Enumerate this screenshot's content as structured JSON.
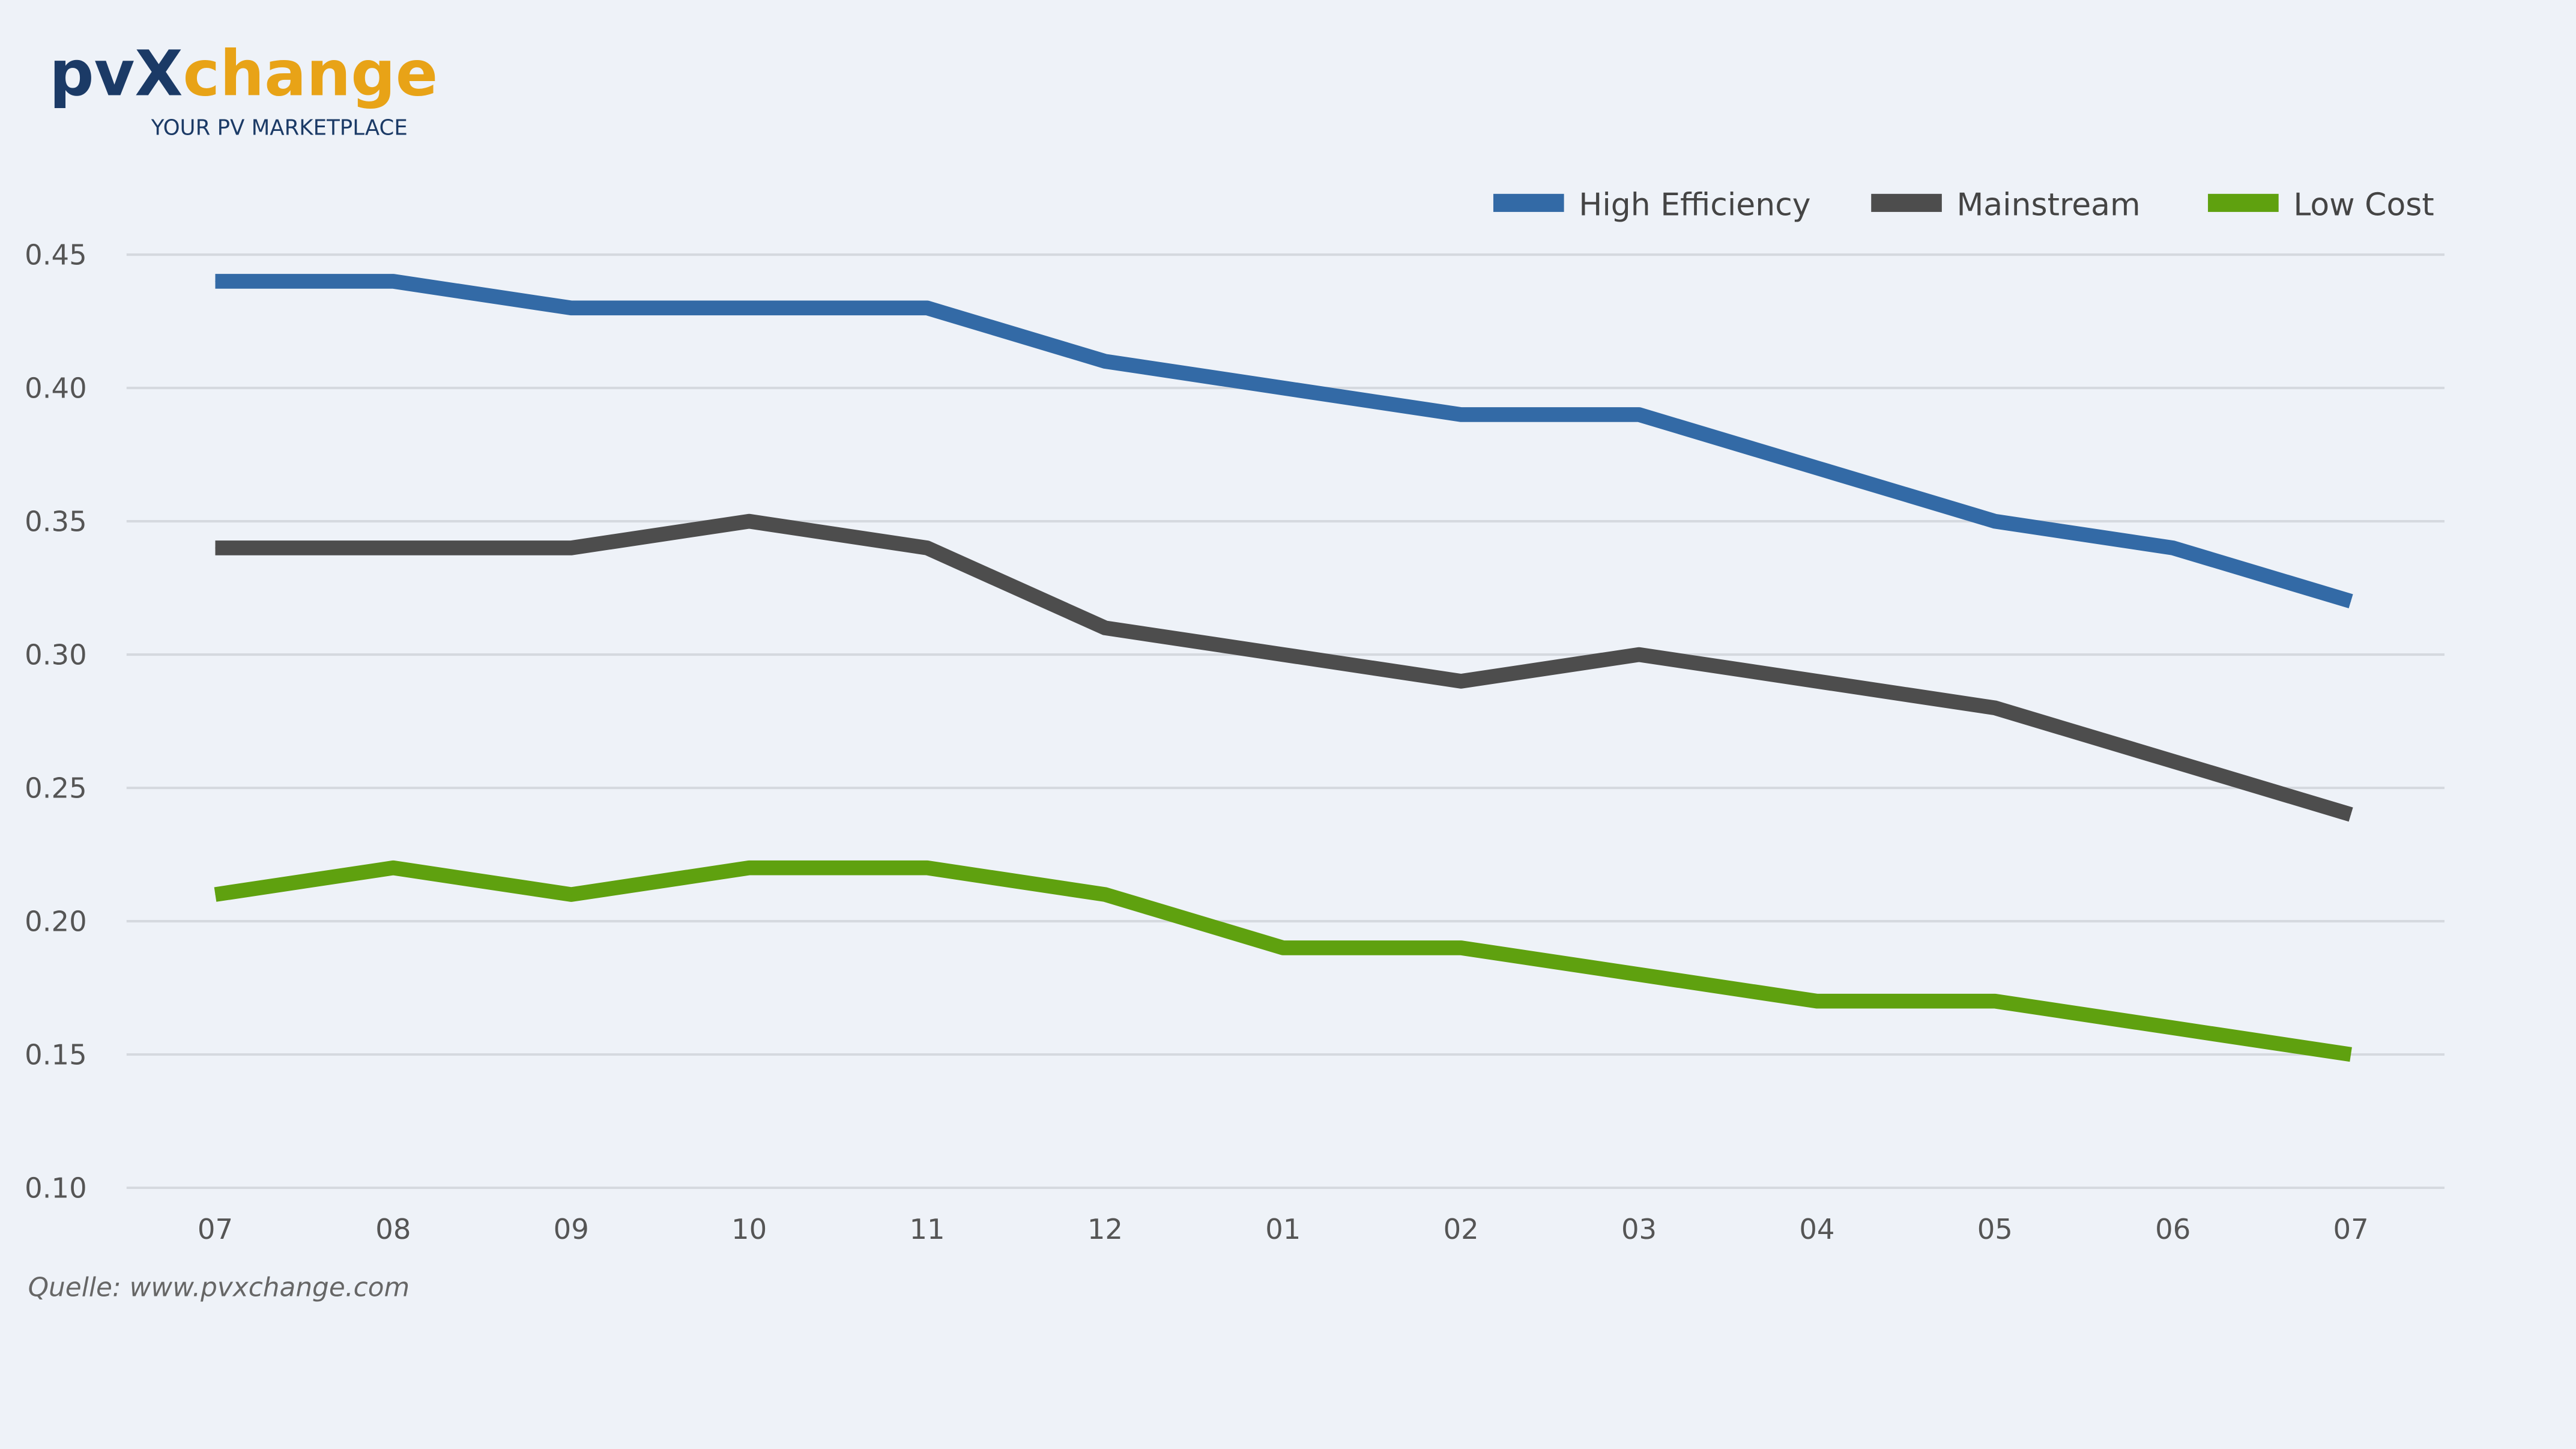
{
  "logo": {
    "text_pv": "pv",
    "text_x": "X",
    "text_change": "change",
    "tagline": "YOUR PV MARKETPLACE",
    "navy": "#1b3a66",
    "orange": "#e8a317"
  },
  "source": "Quelle: www.pvxchange.com",
  "chart_data": {
    "type": "line",
    "title": "",
    "xlabel": "",
    "ylabel": "",
    "categories": [
      "07",
      "08",
      "09",
      "10",
      "11",
      "12",
      "01",
      "02",
      "03",
      "04",
      "05",
      "06",
      "07"
    ],
    "ylim": [
      0.1,
      0.45
    ],
    "yticks": [
      "0.10",
      "0.15",
      "0.20",
      "0.25",
      "0.30",
      "0.35",
      "0.40",
      "0.45"
    ],
    "grid": true,
    "legend_position": "top-right",
    "series": [
      {
        "name": "High Efficiency",
        "color": "#336aa6",
        "values": [
          0.44,
          0.44,
          0.43,
          0.43,
          0.43,
          0.41,
          0.4,
          0.39,
          0.39,
          0.37,
          0.35,
          0.34,
          0.32
        ]
      },
      {
        "name": "Mainstream",
        "color": "#4d4d4d",
        "values": [
          0.34,
          0.34,
          0.34,
          0.35,
          0.34,
          0.31,
          0.3,
          0.29,
          0.3,
          0.29,
          0.28,
          0.26,
          0.24
        ]
      },
      {
        "name": "Low Cost",
        "color": "#5fa10f",
        "values": [
          0.21,
          0.22,
          0.21,
          0.22,
          0.22,
          0.21,
          0.19,
          0.19,
          0.18,
          0.17,
          0.17,
          0.16,
          0.15
        ]
      }
    ]
  }
}
